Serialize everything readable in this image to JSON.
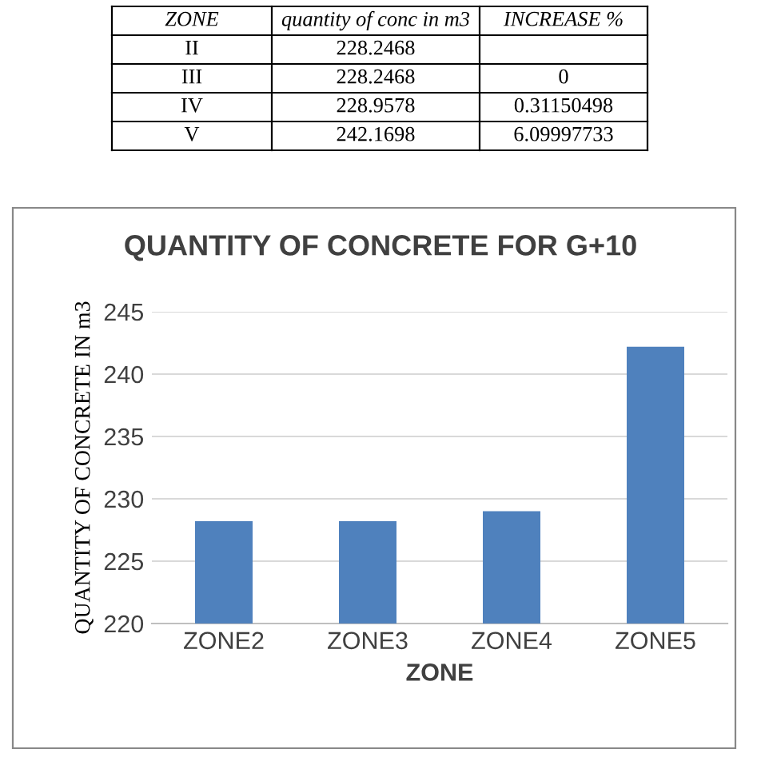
{
  "chart_data": {
    "type": "bar",
    "title": "QUANTITY OF CONCRETE FOR G+10",
    "xlabel": "ZONE",
    "ylabel": "QUANTITY OF CONCRETE IN m3",
    "categories": [
      "ZONE2",
      "ZONE3",
      "ZONE4",
      "ZONE5"
    ],
    "values": [
      228.2,
      228.2,
      229.0,
      242.2
    ],
    "color": "#4f81bd",
    "ylim": [
      220,
      245
    ],
    "yticks": [
      220,
      225,
      230,
      235,
      240,
      245
    ],
    "grid": "y",
    "annotations": [
      "ZONE",
      "quantity of conc in m3",
      "INCREASE %",
      "II",
      "228.2468",
      "III",
      "228.2468",
      "0",
      "IV",
      "228.9578",
      "0.31150498",
      "V",
      "242.1698",
      "6.09997733"
    ]
  }
}
